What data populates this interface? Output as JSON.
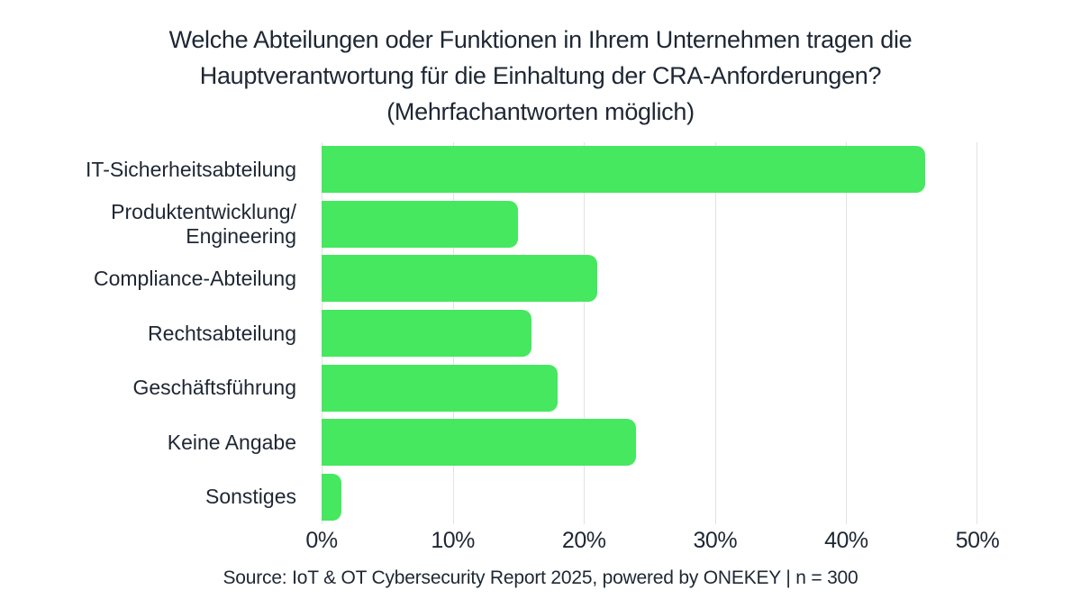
{
  "title": {
    "line1": "Welche Abteilungen oder Funktionen in Ihrem Unternehmen tragen die",
    "line2": "Hauptverantwortung für die Einhaltung der CRA-Anforderungen?",
    "line3": "(Mehrfachantworten möglich)"
  },
  "source": "Source: IoT & OT Cybersecurity Report 2025, powered by ONEKEY | n = 300",
  "chart_data": {
    "type": "bar",
    "orientation": "horizontal",
    "title": "Welche Abteilungen oder Funktionen in Ihrem Unternehmen tragen die Hauptverantwortung für die Einhaltung der CRA-Anforderungen? (Mehrfachantworten möglich)",
    "categories": [
      "IT-Sicherheitsabteilung",
      "Produktentwicklung/\nEngineering",
      "Compliance-Abteilung",
      "Rechtsabteilung",
      "Geschäftsführung",
      "Keine Angabe",
      "Sonstiges"
    ],
    "values": [
      46,
      15,
      21,
      16,
      18,
      24,
      1.5
    ],
    "unit": "%",
    "xlabel": "",
    "ylabel": "",
    "xlim": [
      0,
      50
    ],
    "x_ticks": [
      "0%",
      "10%",
      "20%",
      "30%",
      "40%",
      "50%"
    ],
    "grid": true,
    "legend": false,
    "bar_color": "#45e85f",
    "grid_color": "#e2e2e4",
    "text_color": "#1e2733",
    "background_color": "#ffffff"
  }
}
